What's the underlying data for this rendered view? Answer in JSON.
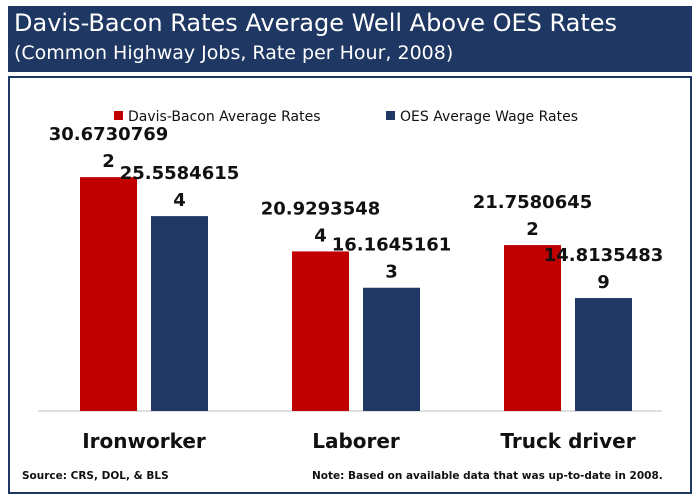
{
  "header": {
    "title": "Davis-Bacon Rates Average Well Above OES Rates",
    "subtitle": "(Common Highway Jobs, Rate per Hour, 2008)"
  },
  "footer": {
    "source": "Source: CRS, DOL, & BLS",
    "note": "Note: Based on available data that was up-to-date in 2008."
  },
  "colors": {
    "header_bg": "#1f3863",
    "series_1": "#c00000",
    "series_2": "#1f3864"
  },
  "chart_data": {
    "type": "bar",
    "title": "Davis-Bacon Rates Average Well Above OES Rates",
    "subtitle": "(Common Highway Jobs, Rate per Hour, 2008)",
    "categories": [
      "Ironworker",
      "Laborer",
      "Truck driver"
    ],
    "series": [
      {
        "name": "Davis-Bacon Average Rates",
        "color": "#c00000",
        "values": [
          30.67307692,
          20.92935484,
          21.75806452
        ],
        "labels": [
          [
            "30.6730769",
            "2"
          ],
          [
            "20.9293548",
            "4"
          ],
          [
            "21.7580645",
            "2"
          ]
        ]
      },
      {
        "name": "OES Average Wage Rates",
        "color": "#1f3864",
        "values": [
          25.55846154,
          16.16451613,
          14.81354839
        ],
        "labels": [
          [
            "25.5584615",
            "4"
          ],
          [
            "16.1645161",
            "3"
          ],
          [
            "14.8135483",
            "9"
          ]
        ]
      }
    ],
    "ylim": [
      0,
      40
    ],
    "legend": "top",
    "grid": false
  }
}
